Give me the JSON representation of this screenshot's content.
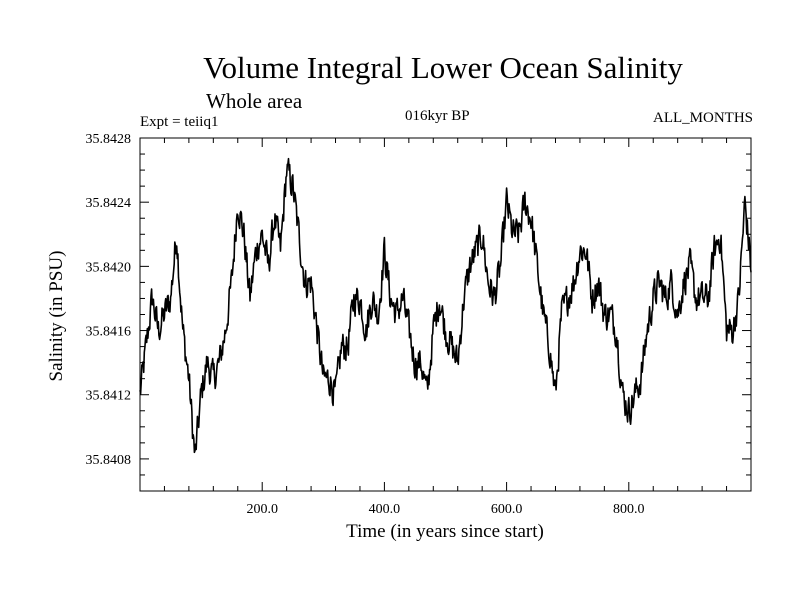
{
  "header": {
    "title": "Volume Integral Lower Ocean Salinity",
    "subtitle": "Whole area",
    "expt": "Expt = teiiq1",
    "period": "016kyr BP",
    "months": "ALL_MONTHS"
  },
  "chart_data": {
    "type": "line",
    "title": "Volume Integral Lower Ocean Salinity",
    "subtitle": "Whole area",
    "xlabel": "Time (in years since start)",
    "ylabel": "Salinity (in PSU)",
    "xlim": [
      0,
      1000
    ],
    "ylim": [
      35.8406,
      35.8428
    ],
    "xticks": [
      200,
      400,
      600,
      800
    ],
    "xtick_labels": [
      "200.0",
      "400.0",
      "600.0",
      "800.0"
    ],
    "yticks": [
      35.8408,
      35.8412,
      35.8416,
      35.842,
      35.8424,
      35.8428
    ],
    "ytick_labels": [
      "35.8408",
      "35.8412",
      "35.8416",
      "35.8420",
      "35.8424",
      "35.8428"
    ],
    "grid": false,
    "series": [
      {
        "color": "#000000",
        "x": [
          0,
          10,
          20,
          30,
          40,
          50,
          60,
          70,
          80,
          90,
          100,
          110,
          120,
          130,
          140,
          150,
          160,
          170,
          180,
          190,
          200,
          210,
          220,
          230,
          240,
          250,
          260,
          270,
          280,
          290,
          300,
          310,
          320,
          330,
          340,
          350,
          360,
          370,
          380,
          390,
          400,
          410,
          420,
          430,
          440,
          450,
          460,
          470,
          480,
          490,
          500,
          510,
          520,
          530,
          540,
          550,
          560,
          570,
          580,
          590,
          600,
          610,
          620,
          630,
          640,
          650,
          660,
          670,
          680,
          690,
          700,
          710,
          720,
          730,
          740,
          750,
          760,
          770,
          780,
          790,
          800,
          810,
          820,
          830,
          840,
          850,
          860,
          870,
          880,
          890,
          900,
          910,
          920,
          930,
          940,
          950,
          960,
          970,
          980,
          990,
          1000
        ],
        "y": [
          35.8412,
          35.8415,
          35.8418,
          35.8416,
          35.8417,
          35.8418,
          35.8422,
          35.8416,
          35.8413,
          35.8408,
          35.8412,
          35.8414,
          35.8413,
          35.8414,
          35.8416,
          35.8419,
          35.8424,
          35.8422,
          35.8418,
          35.8421,
          35.8422,
          35.842,
          35.8423,
          35.8421,
          35.8426,
          35.8425,
          35.8422,
          35.8419,
          35.8419,
          35.8416,
          35.8413,
          35.8413,
          35.8412,
          35.8415,
          35.8415,
          35.8418,
          35.8418,
          35.8416,
          35.8418,
          35.8417,
          35.8421,
          35.8418,
          35.8417,
          35.8418,
          35.8416,
          35.8414,
          35.8414,
          35.8412,
          35.8416,
          35.8418,
          35.8416,
          35.8415,
          35.8414,
          35.8418,
          35.842,
          35.8421,
          35.8422,
          35.8419,
          35.8418,
          35.842,
          35.8424,
          35.8422,
          35.8422,
          35.8424,
          35.8423,
          35.842,
          35.8417,
          35.8415,
          35.8412,
          35.8417,
          35.8418,
          35.8419,
          35.8421,
          35.8421,
          35.8418,
          35.8419,
          35.8417,
          35.8417,
          35.8416,
          35.8412,
          35.8411,
          35.8412,
          35.8413,
          35.8416,
          35.8418,
          35.8419,
          35.8418,
          35.8419,
          35.8417,
          35.8419,
          35.842,
          35.8418,
          35.8418,
          35.8418,
          35.8421,
          35.8422,
          35.8416,
          35.8416,
          35.8418,
          35.8424,
          35.842
        ]
      }
    ]
  }
}
